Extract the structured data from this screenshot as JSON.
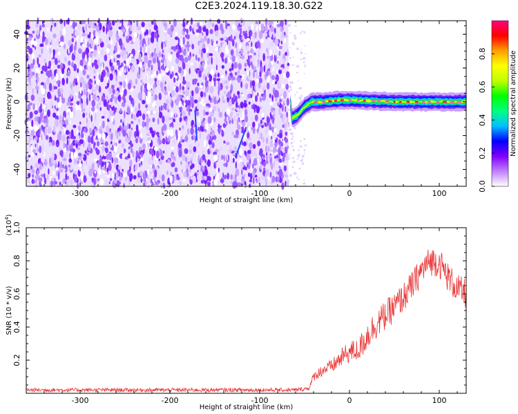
{
  "title": "C2E3.2024.119.18.30.G22",
  "chart_data": [
    {
      "type": "heatmap",
      "xlabel": "Height of straight line (km)",
      "ylabel": "Frequency (Hz)",
      "xlim": [
        -360,
        130
      ],
      "ylim": [
        -50,
        48
      ],
      "x_ticks": [
        -300,
        -200,
        -100,
        0,
        100
      ],
      "x_tick_labels": [
        "-300",
        "-200",
        "-100",
        "0",
        "100"
      ],
      "y_ticks": [
        -40,
        -20,
        0,
        20,
        40
      ],
      "y_tick_labels": [
        "-40",
        "-20",
        "0",
        "20",
        "40"
      ],
      "noise_region_x": [
        -360,
        -68
      ],
      "signal_track": [
        {
          "x": -65,
          "y": -10
        },
        {
          "x": -58,
          "y": -8
        },
        {
          "x": -50,
          "y": -3
        },
        {
          "x": -42,
          "y": 0
        },
        {
          "x": -30,
          "y": 0
        },
        {
          "x": -10,
          "y": 1
        },
        {
          "x": 0,
          "y": 1
        },
        {
          "x": 50,
          "y": 0
        },
        {
          "x": 130,
          "y": 0
        }
      ],
      "colorbar": {
        "label": "Normalized spectral amplitude",
        "range": [
          0.0,
          1.0
        ],
        "ticks": [
          0.0,
          0.2,
          0.4,
          0.6,
          0.8
        ],
        "tick_labels": [
          "0.0",
          "0.2",
          "0.4",
          "0.6",
          "0.8"
        ],
        "colors": [
          "#ffffff",
          "#c080ff",
          "#8000ff",
          "#0000ff",
          "#00c0ff",
          "#00ff80",
          "#00ff00",
          "#c0ff00",
          "#ffff00",
          "#ffa000",
          "#ff0000",
          "#ff0080"
        ]
      },
      "grid": false
    },
    {
      "type": "line",
      "xlabel": "Height of straight line (km)",
      "ylabel": "SNR (10 * v/v)",
      "y_multiplier_label": "(x10",
      "y_multiplier_exp": "4",
      "xlim": [
        -360,
        130
      ],
      "ylim": [
        0,
        1.0
      ],
      "x_ticks": [
        -300,
        -200,
        -100,
        0,
        100
      ],
      "x_tick_labels": [
        "-300",
        "-200",
        "-100",
        "0",
        "100"
      ],
      "y_ticks": [
        0.2,
        0.4,
        0.6,
        0.8,
        1.0
      ],
      "y_tick_labels": [
        "0.2",
        "0.4",
        "0.6",
        "0.8",
        "1.0"
      ],
      "series": [
        {
          "color": "#e83030",
          "x": [
            -360,
            -300,
            -200,
            -100,
            -60,
            -45,
            -40,
            -30,
            -20,
            -10,
            0,
            10,
            20,
            30,
            40,
            50,
            60,
            70,
            80,
            90,
            100,
            110,
            120,
            130
          ],
          "y": [
            0.02,
            0.02,
            0.02,
            0.02,
            0.02,
            0.03,
            0.1,
            0.14,
            0.16,
            0.21,
            0.25,
            0.26,
            0.35,
            0.42,
            0.47,
            0.52,
            0.58,
            0.65,
            0.74,
            0.8,
            0.79,
            0.7,
            0.63,
            0.6
          ]
        }
      ],
      "grid": false
    }
  ]
}
